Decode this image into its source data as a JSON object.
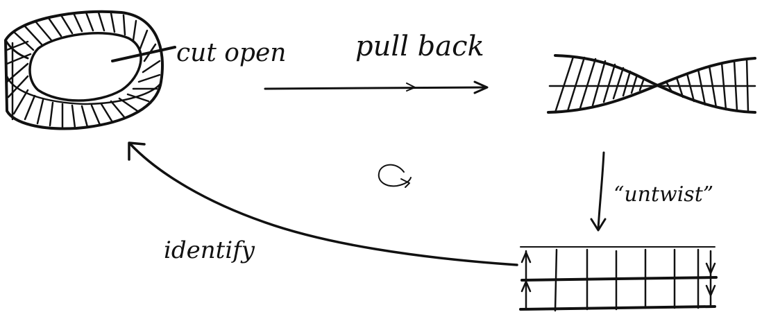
{
  "labels": {
    "cut_open": "cut open",
    "pull_back": "pull back",
    "untwist": "“untwist”",
    "identify": "identify"
  },
  "colors": {
    "ink": "#111111",
    "background": "#ffffff"
  },
  "icons": {
    "rotation": "cycle-arrow-icon"
  }
}
